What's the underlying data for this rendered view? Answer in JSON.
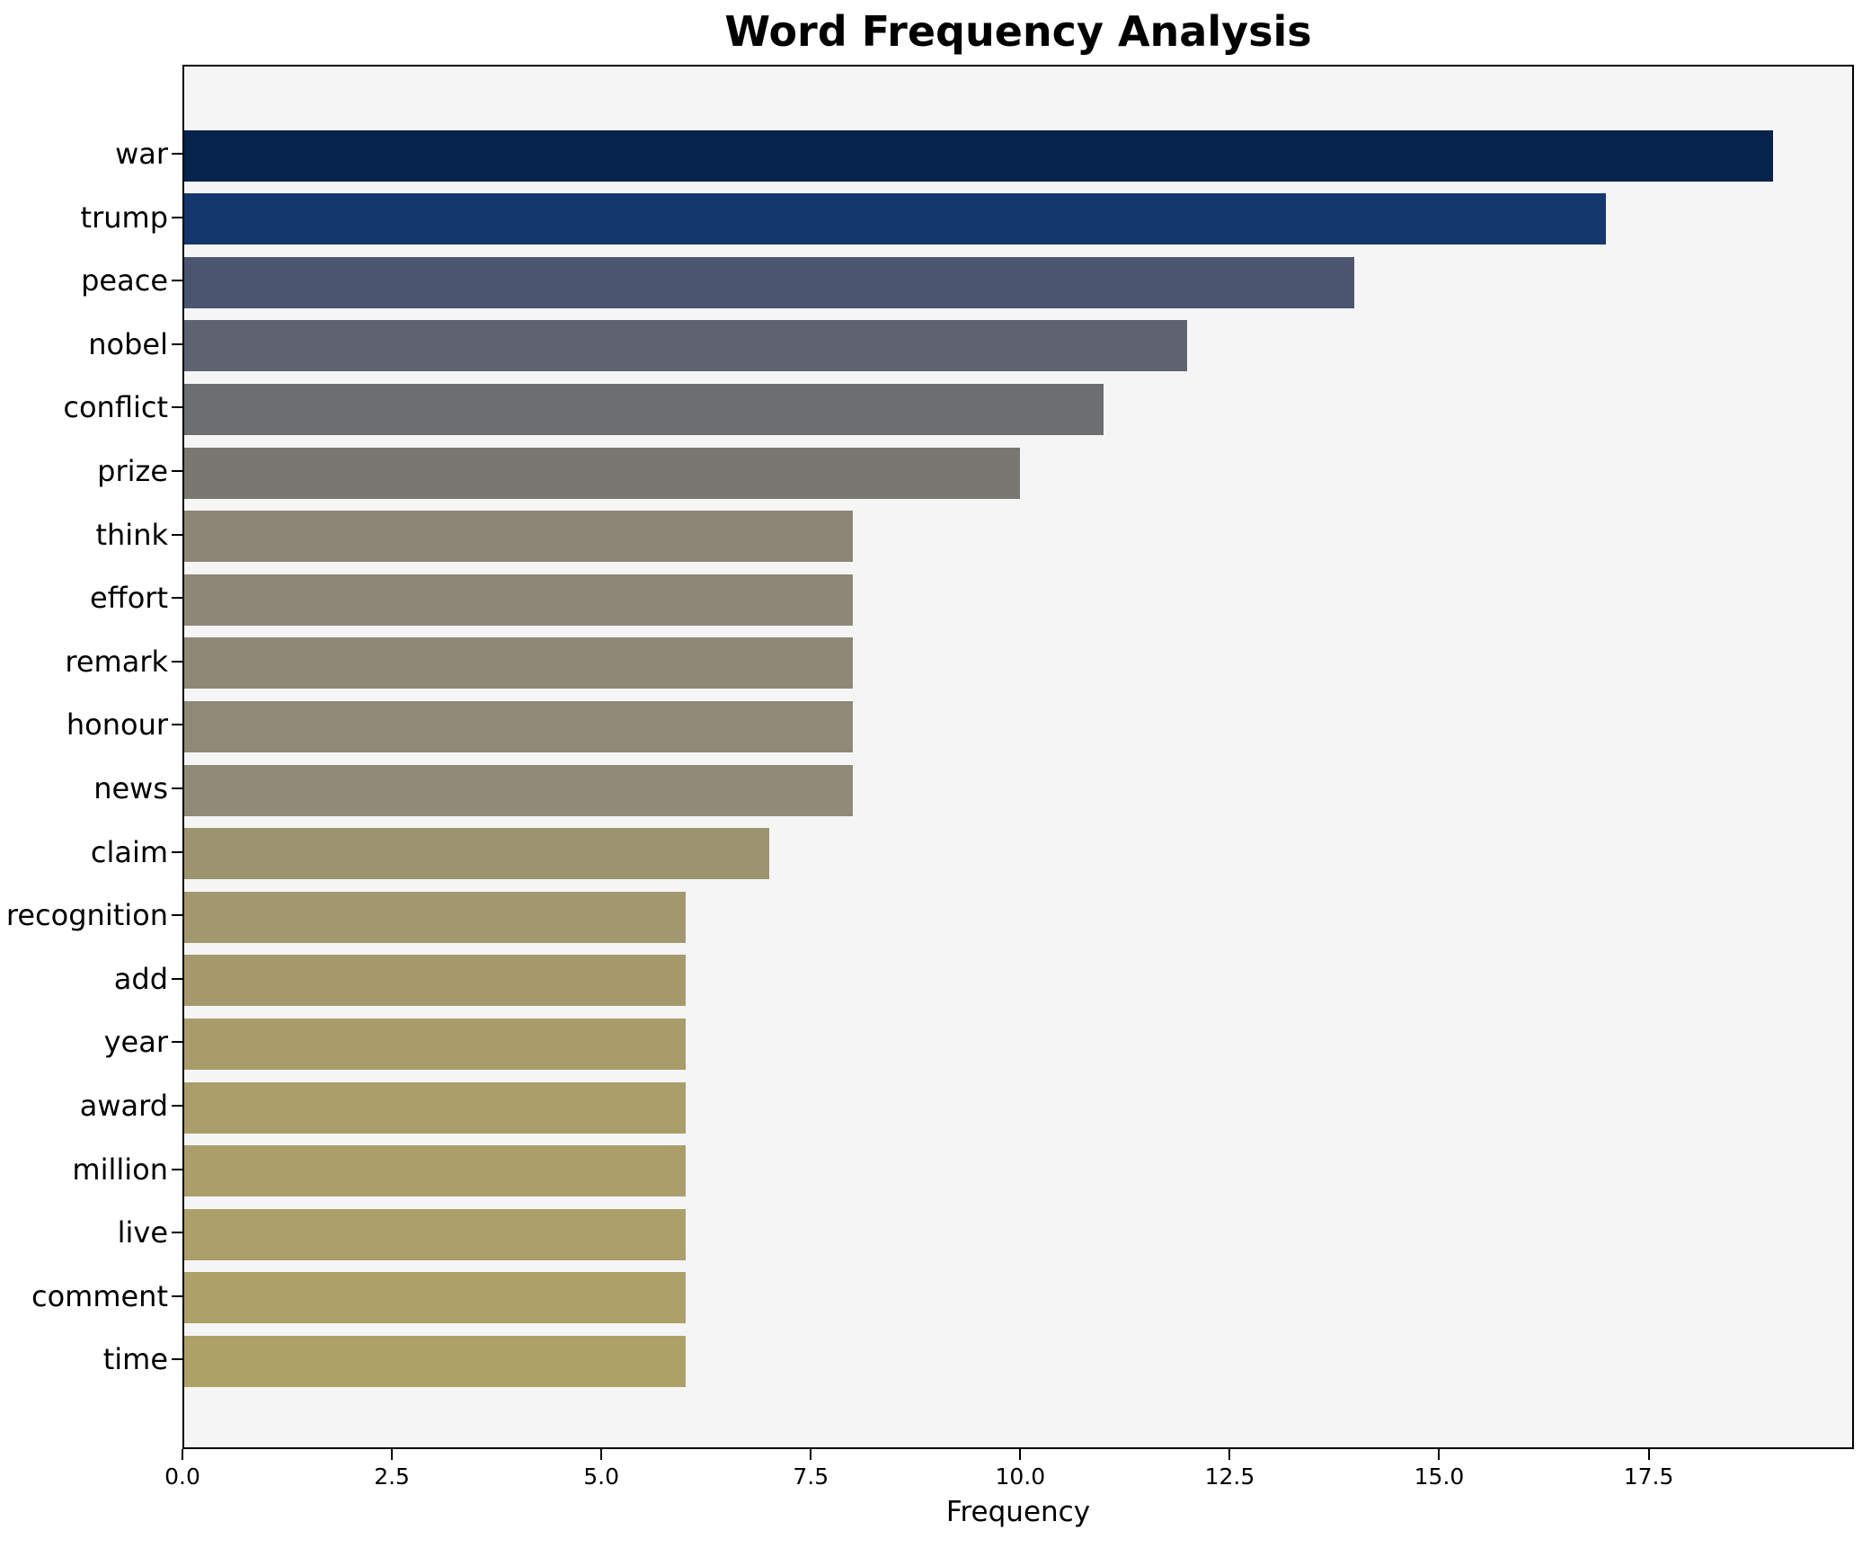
{
  "chart_data": {
    "type": "bar",
    "orientation": "horizontal",
    "title": "Word Frequency Analysis",
    "xlabel": "Frequency",
    "ylabel": "",
    "categories": [
      "war",
      "trump",
      "peace",
      "nobel",
      "conflict",
      "prize",
      "think",
      "effort",
      "remark",
      "honour",
      "news",
      "claim",
      "recognition",
      "add",
      "year",
      "award",
      "million",
      "live",
      "comment",
      "time"
    ],
    "values": [
      19,
      17,
      14,
      12,
      11,
      10,
      8,
      8,
      8,
      8,
      8,
      7,
      6,
      6,
      6,
      6,
      6,
      6,
      6,
      6
    ],
    "bar_colors": [
      "#05234b",
      "#14386e",
      "#4b556f",
      "#5f6370",
      "#6c6e70",
      "#797772",
      "#8c8677",
      "#8d8777",
      "#8e8877",
      "#8f8977",
      "#908a76",
      "#9c946f",
      "#a3986d",
      "#a69a6c",
      "#a89c6b",
      "#a99d6a",
      "#ab9e6a",
      "#ac9f69",
      "#ada069",
      "#aea168"
    ],
    "xlim": [
      0,
      19.95
    ],
    "xticks": [
      0.0,
      2.5,
      5.0,
      7.5,
      10.0,
      12.5,
      15.0,
      17.5
    ],
    "xtick_labels": [
      "0.0",
      "2.5",
      "5.0",
      "7.5",
      "10.0",
      "12.5",
      "15.0",
      "17.5"
    ],
    "grid": false,
    "legend": null,
    "plot_background": "#f5f5f6",
    "figure_background": "#ffffff",
    "spine_color": "#000000"
  }
}
